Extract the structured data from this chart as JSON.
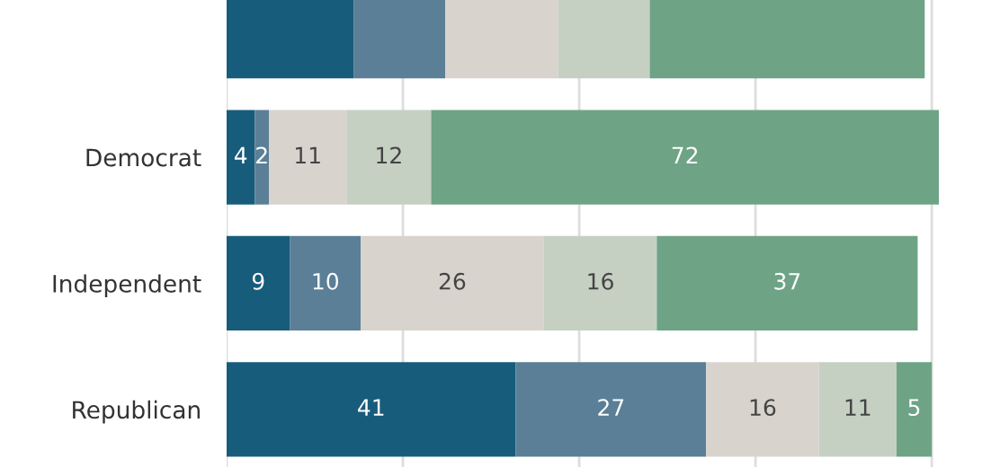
{
  "chart_data": {
    "type": "bar",
    "orientation": "horizontal",
    "stacked": true,
    "categories": [
      null,
      "Democrat",
      "Independent",
      "Republican"
    ],
    "series": [
      {
        "color": "#185c7c",
        "values": [
          18,
          4,
          9,
          41
        ],
        "value_labels": [
          null,
          "4",
          "9",
          "41"
        ]
      },
      {
        "color": "#5a7f96",
        "values": [
          13,
          2,
          10,
          27
        ],
        "value_labels": [
          null,
          "2",
          "10",
          "27"
        ]
      },
      {
        "color": "#d8d3cd",
        "values": [
          16,
          11,
          26,
          16
        ],
        "value_labels": [
          null,
          "11",
          "26",
          "16"
        ]
      },
      {
        "color": "#c5d0c3",
        "values": [
          13,
          12,
          16,
          11
        ],
        "value_labels": [
          null,
          "12",
          "16",
          "11"
        ]
      },
      {
        "color": "#6ea386",
        "values": [
          39,
          72,
          37,
          5
        ],
        "value_labels": [
          null,
          "72",
          "37",
          "5"
        ]
      }
    ],
    "xlim": [
      0,
      101
    ],
    "xticks": [
      {
        "value": 0,
        "label": null
      },
      {
        "value": 25,
        "label": null
      },
      {
        "value": 50,
        "label": null
      },
      {
        "value": 75,
        "label": null
      },
      {
        "value": 100,
        "label": null
      }
    ],
    "grid": "x",
    "tick_labels": "y"
  }
}
